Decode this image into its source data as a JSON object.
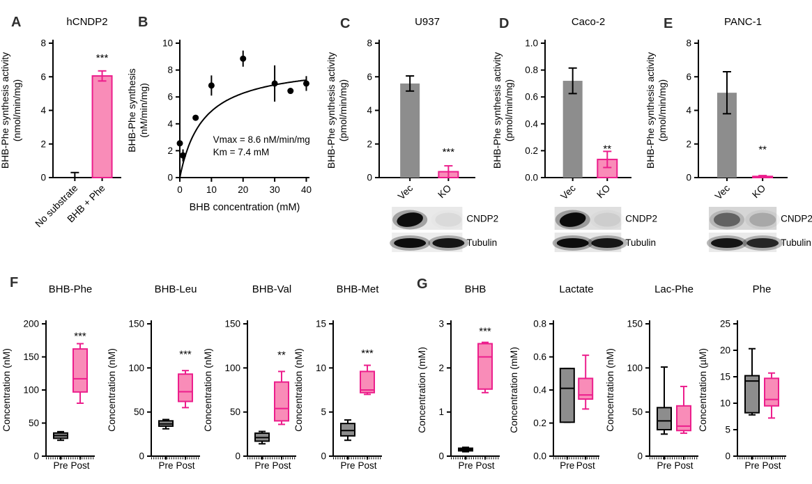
{
  "figure": {
    "panel_labels": [
      "A",
      "B",
      "C",
      "D",
      "E",
      "F",
      "G"
    ]
  },
  "palette": {
    "pink_fill": "#F98CB8",
    "pink_edge": "#EC1E8C",
    "gray_fill": "#8D8D8D",
    "black": "#000000",
    "panel_letter": "#2e2e2e"
  },
  "chart_data": [
    {
      "id": "A",
      "type": "bar",
      "title": "hCNDP2",
      "ylabel": [
        "BHB-Phe synthesis activity",
        "(nmol/min/mg)"
      ],
      "ylim": [
        0,
        8
      ],
      "yticks": [
        0,
        2,
        4,
        6,
        8
      ],
      "ytick_labels": [
        "0",
        "2",
        "4",
        "6",
        "8"
      ],
      "categories": [
        "No substrate",
        "BHB + Phe"
      ],
      "values": [
        0.05,
        6.05
      ],
      "errors": [
        0.25,
        0.3
      ],
      "styles": [
        "none",
        "pink"
      ],
      "sig": {
        "label": "***",
        "index": 1,
        "y": 7.3
      }
    },
    {
      "id": "B",
      "type": "scatter",
      "title": "",
      "ylabel": [
        "BHB-Phe synthesis",
        "(nM/min/mg)"
      ],
      "xlabel": "BHB concentration (mM)",
      "xlim": [
        0,
        41
      ],
      "ylim": [
        0,
        10
      ],
      "xticks": [
        0,
        10,
        20,
        30,
        40
      ],
      "xtick_labels": [
        "0",
        "10",
        "20",
        "30",
        "40"
      ],
      "yticks": [
        0,
        2,
        4,
        6,
        8,
        10
      ],
      "ytick_labels": [
        "0",
        "2",
        "4",
        "6",
        "8",
        "10"
      ],
      "points": [
        {
          "x": 0,
          "y": 2.55,
          "e": 0.3
        },
        {
          "x": 1,
          "y": 1.65,
          "e": 0.45
        },
        {
          "x": 5,
          "y": 4.45,
          "e": 0.15
        },
        {
          "x": 10,
          "y": 6.85,
          "e": 0.75
        },
        {
          "x": 20,
          "y": 8.85,
          "e": 0.6
        },
        {
          "x": 30,
          "y": 7.0,
          "e": 1.35
        },
        {
          "x": 35,
          "y": 6.45,
          "e": 0.2
        },
        {
          "x": 40,
          "y": 7.0,
          "e": 0.55
        }
      ],
      "fit": {
        "model": "michaelis-menten",
        "vmax": 8.6,
        "km": 7.4,
        "vmax_label": "Vmax = 8.6 nM/min/mg",
        "km_label": "Km = 7.4 mM"
      },
      "annotation_pos": {
        "x": 10.5,
        "y": 2.6
      }
    },
    {
      "id": "C",
      "type": "bar",
      "title": "U937",
      "ylabel": [
        "BHB-Phe synthesis activity",
        "(pmol/min/mg)"
      ],
      "ylim": [
        0,
        8
      ],
      "yticks": [
        0,
        2,
        4,
        6,
        8
      ],
      "ytick_labels": [
        "0",
        "2",
        "4",
        "6",
        "8"
      ],
      "categories": [
        "Vec",
        "KO"
      ],
      "values": [
        5.6,
        0.35
      ],
      "errors": [
        0.45,
        0.35
      ],
      "styles": [
        "gray",
        "pink"
      ],
      "sig": {
        "label": "***",
        "index": 1,
        "y": 1.7
      }
    },
    {
      "id": "D",
      "type": "bar",
      "title": "Caco-2",
      "ylabel": [
        "BHB-Phe synthesis activity",
        "(pmol/min/mg)"
      ],
      "ylim": [
        0,
        1
      ],
      "yticks": [
        0,
        0.2,
        0.4,
        0.6,
        0.8,
        1
      ],
      "ytick_labels": [
        "0.0",
        "0.2",
        "0.4",
        "0.6",
        "0.8",
        "1.0"
      ],
      "categories": [
        "Vec",
        "KO"
      ],
      "values": [
        0.72,
        0.135
      ],
      "errors": [
        0.095,
        0.06
      ],
      "styles": [
        "gray",
        "pink"
      ],
      "sig": {
        "label": "**",
        "index": 1,
        "y": 0.235
      }
    },
    {
      "id": "E",
      "type": "bar",
      "title": "PANC-1",
      "ylabel": [
        "BHB-Phe synthesis activity",
        "(pmol/min/mg)"
      ],
      "ylim": [
        0,
        8
      ],
      "yticks": [
        0,
        2,
        4,
        6,
        8
      ],
      "ytick_labels": [
        "0",
        "2",
        "4",
        "6",
        "8"
      ],
      "categories": [
        "Vec",
        "KO"
      ],
      "values": [
        5.05,
        0.07
      ],
      "errors": [
        1.25,
        0.05
      ],
      "styles": [
        "gray",
        "pink"
      ],
      "sig": {
        "label": "**",
        "index": 1,
        "y": 1.85
      }
    },
    {
      "id": "F1",
      "type": "box",
      "title": "BHB-Phe",
      "ylabel": [
        "Concentration (nM)"
      ],
      "ylim": [
        0,
        200
      ],
      "yticks": [
        0,
        50,
        100,
        150,
        200
      ],
      "ytick_labels": [
        "0",
        "50",
        "100",
        "150",
        "200"
      ],
      "groups": [
        {
          "label": "Pre",
          "style": "gray",
          "lo": 24,
          "q1": 27,
          "med": 31,
          "q3": 35,
          "hi": 37
        },
        {
          "label": "Post",
          "style": "pink",
          "lo": 80,
          "q1": 97,
          "med": 117,
          "q3": 162,
          "hi": 170
        }
      ],
      "sig": {
        "label": "***",
        "y": 186
      }
    },
    {
      "id": "F2",
      "type": "box",
      "title": "BHB-Leu",
      "ylabel": [
        "Concentration (nM)"
      ],
      "ylim": [
        0,
        150
      ],
      "yticks": [
        0,
        50,
        100,
        150
      ],
      "ytick_labels": [
        "0",
        "50",
        "100",
        "150"
      ],
      "groups": [
        {
          "label": "Pre",
          "style": "gray",
          "lo": 31,
          "q1": 34,
          "med": 36.5,
          "q3": 40,
          "hi": 41.5
        },
        {
          "label": "Post",
          "style": "pink",
          "lo": 55,
          "q1": 62,
          "med": 73,
          "q3": 93,
          "hi": 97
        }
      ],
      "sig": {
        "label": "***",
        "y": 119
      }
    },
    {
      "id": "F3",
      "type": "box",
      "title": "BHB-Val",
      "ylabel": [
        "Concentration (nM)"
      ],
      "ylim": [
        0,
        150
      ],
      "yticks": [
        0,
        50,
        100,
        150
      ],
      "ytick_labels": [
        "0",
        "50",
        "100",
        "150"
      ],
      "groups": [
        {
          "label": "Pre",
          "style": "gray",
          "lo": 14,
          "q1": 17,
          "med": 21,
          "q3": 26,
          "hi": 28
        },
        {
          "label": "Post",
          "style": "pink",
          "lo": 36,
          "q1": 40,
          "med": 54,
          "q3": 84,
          "hi": 96
        }
      ],
      "sig": {
        "label": "**",
        "y": 118
      }
    },
    {
      "id": "F4",
      "type": "box",
      "title": "BHB-Met",
      "ylabel": [
        "Concentration (nM)"
      ],
      "ylim": [
        0,
        15
      ],
      "yticks": [
        0,
        5,
        10,
        15
      ],
      "ytick_labels": [
        "0",
        "5",
        "10",
        "15"
      ],
      "groups": [
        {
          "label": "Pre",
          "style": "gray",
          "lo": 1.8,
          "q1": 2.3,
          "med": 2.9,
          "q3": 3.7,
          "hi": 4.1
        },
        {
          "label": "Post",
          "style": "pink",
          "lo": 7.0,
          "q1": 7.2,
          "med": 7.5,
          "q3": 9.6,
          "hi": 10.3
        }
      ],
      "sig": {
        "label": "***",
        "y": 12
      }
    },
    {
      "id": "G1",
      "type": "box",
      "title": "BHB",
      "ylabel": [
        "Concentration (mM)"
      ],
      "ylim": [
        0,
        3
      ],
      "yticks": [
        0,
        1,
        2,
        3
      ],
      "ytick_labels": [
        "0",
        "1",
        "2",
        "3"
      ],
      "groups": [
        {
          "label": "Pre",
          "style": "gray",
          "lo": 0.1,
          "q1": 0.12,
          "med": 0.15,
          "q3": 0.18,
          "hi": 0.2
        },
        {
          "label": "Post",
          "style": "pink",
          "lo": 1.44,
          "q1": 1.52,
          "med": 2.25,
          "q3": 2.55,
          "hi": 2.58
        }
      ],
      "sig": {
        "label": "***",
        "y": 2.9
      }
    },
    {
      "id": "G2",
      "type": "box",
      "title": "Lactate",
      "ylabel": [
        "Concentration (mM)"
      ],
      "ylim": [
        0,
        0.8
      ],
      "yticks": [
        0,
        0.2,
        0.4,
        0.6,
        0.8
      ],
      "ytick_labels": [
        "0.0",
        "0.2",
        "0.4",
        "0.6",
        "0.8"
      ],
      "groups": [
        {
          "label": "Pre",
          "style": "gray",
          "lo": 0.205,
          "q1": 0.205,
          "med": 0.41,
          "q3": 0.53,
          "hi": 0.53
        },
        {
          "label": "Post",
          "style": "pink",
          "lo": 0.285,
          "q1": 0.345,
          "med": 0.37,
          "q3": 0.47,
          "hi": 0.61
        }
      ]
    },
    {
      "id": "G3",
      "type": "box",
      "title": "Lac-Phe",
      "ylabel": [
        "Concentration (nM)"
      ],
      "ylim": [
        0,
        150
      ],
      "yticks": [
        0,
        50,
        100,
        150
      ],
      "ytick_labels": [
        "0",
        "50",
        "100",
        "150"
      ],
      "groups": [
        {
          "label": "Pre",
          "style": "gray",
          "lo": 25,
          "q1": 30,
          "med": 40,
          "q3": 55,
          "hi": 101
        },
        {
          "label": "Post",
          "style": "pink",
          "lo": 26,
          "q1": 29,
          "med": 34,
          "q3": 57,
          "hi": 79
        }
      ]
    },
    {
      "id": "G4",
      "type": "box",
      "title": "Phe",
      "ylabel": [
        "Concentration (µM)"
      ],
      "ylim": [
        0,
        25
      ],
      "yticks": [
        0,
        5,
        10,
        15,
        20,
        25
      ],
      "ytick_labels": [
        "0",
        "5",
        "10",
        "15",
        "20",
        "25"
      ],
      "groups": [
        {
          "label": "Pre",
          "style": "gray",
          "lo": 7.8,
          "q1": 8.2,
          "med": 14.2,
          "q3": 15.2,
          "hi": 20.3
        },
        {
          "label": "Post",
          "style": "pink",
          "lo": 7.2,
          "q1": 9.5,
          "med": 10.7,
          "q3": 14.7,
          "hi": 15.7
        }
      ]
    }
  ],
  "blots": {
    "C": {
      "lane_labels": [
        "Vec",
        "KO"
      ],
      "rows": [
        {
          "label": "CNDP2",
          "bg": "#E9E9E9",
          "bands": [
            1.0,
            0.05
          ]
        },
        {
          "label": "Tubulin",
          "bg": "#EDEDED",
          "bands": [
            1.0,
            0.95
          ]
        }
      ]
    },
    "D": {
      "lane_labels": [
        "Vec",
        "KO"
      ],
      "rows": [
        {
          "label": "CNDP2",
          "bg": "#DFDFDF",
          "bands": [
            1.0,
            0.07
          ]
        },
        {
          "label": "Tubulin",
          "bg": "#E7E7E7",
          "bands": [
            1.0,
            0.95
          ]
        }
      ]
    },
    "E": {
      "lane_labels": [
        "Vec",
        "KO"
      ],
      "rows": [
        {
          "label": "CNDP2",
          "bg": "#D6D6D6",
          "bands": [
            0.5,
            0.18
          ]
        },
        {
          "label": "Tubulin",
          "bg": "#EAEAEA",
          "bands": [
            0.95,
            0.85
          ]
        }
      ]
    }
  }
}
